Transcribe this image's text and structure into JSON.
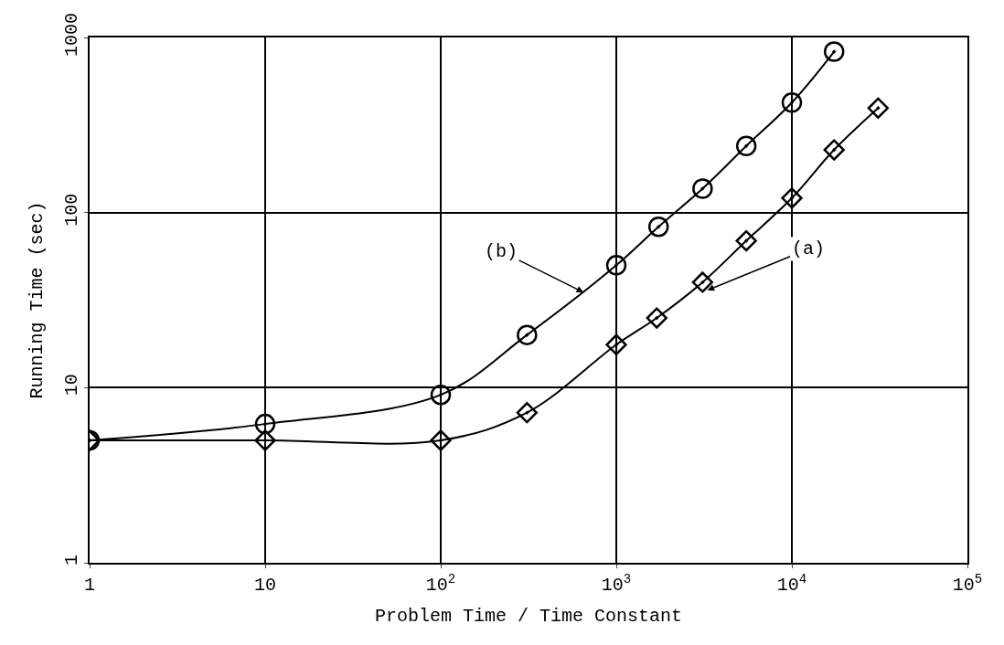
{
  "chart_data": {
    "type": "line",
    "xlabel": "Problem Time / Time Constant",
    "ylabel": "Running Time (sec)",
    "log": "xy",
    "grid": true,
    "line_style": "solid",
    "xlim": [
      1,
      100000
    ],
    "xticks": [
      1,
      10,
      {
        "value": 100,
        "label": "10$^{2}$"
      },
      {
        "value": 1000,
        "label": "10$^{3}$"
      },
      {
        "value": 10000,
        "label": "10$^{4}$"
      },
      {
        "value": 100000,
        "label": "10$^{5}$"
      }
    ],
    "ylim": [
      1,
      1000
    ],
    "yticks": [
      1,
      10,
      100,
      1000
    ],
    "series": [
      {
        "color": "#000000",
        "marker": "circle",
        "x": [
          1,
          10,
          100,
          310,
          1000,
          1740,
          3100,
          5500,
          10000,
          17400
        ],
        "values": [
          5.0,
          6.2,
          9.1,
          20,
          50,
          83,
          137,
          240,
          425,
          830
        ]
      },
      {
        "color": "#000000",
        "marker": "diamond",
        "x": [
          1,
          10,
          100,
          310,
          1000,
          1700,
          3100,
          5500,
          10000,
          17400,
          31000
        ],
        "values": [
          5.0,
          5.0,
          5.0,
          7.2,
          17.6,
          25,
          40,
          69,
          121,
          228,
          395
        ]
      }
    ],
    "annotations": [
      {
        "text": "(a)",
        "x": 3300,
        "y": 36
      },
      {
        "text": "(b)",
        "x": 650,
        "y": 35
      }
    ]
  }
}
